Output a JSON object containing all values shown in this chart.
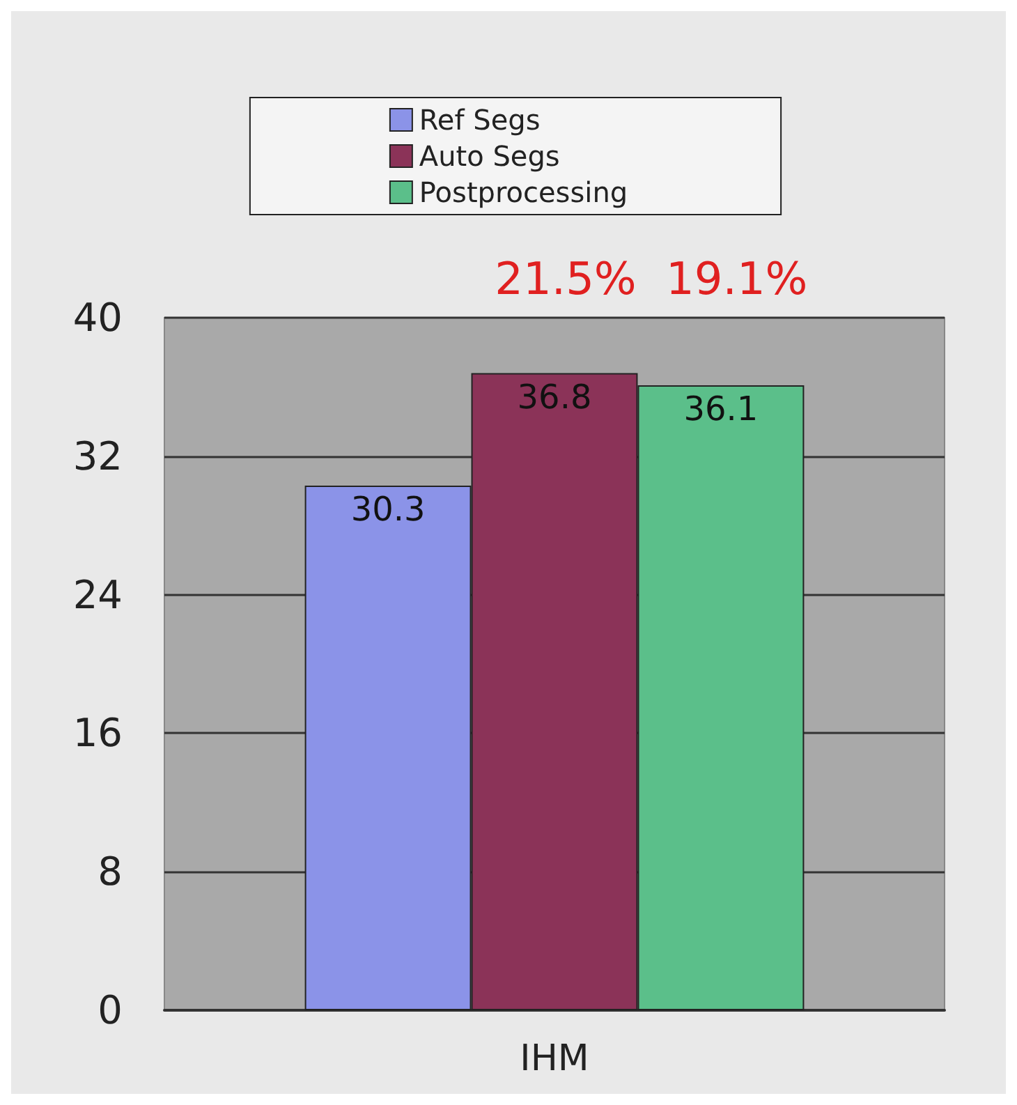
{
  "chart_data": {
    "type": "bar",
    "categories": [
      "IHM"
    ],
    "series": [
      {
        "name": "Ref Segs",
        "color": "#8b93e8",
        "values": [
          30.3
        ]
      },
      {
        "name": "Auto Segs",
        "color": "#8b3358",
        "values": [
          36.8
        ]
      },
      {
        "name": "Postprocessing",
        "color": "#5bbf8a",
        "values": [
          36.1
        ]
      }
    ],
    "ylim": [
      0,
      40
    ],
    "yticks": [
      0,
      8,
      16,
      24,
      32,
      40
    ],
    "grid": "y",
    "legend": "top",
    "data_labels": true,
    "annotations": [
      "21.5%",
      "19.1%"
    ]
  }
}
